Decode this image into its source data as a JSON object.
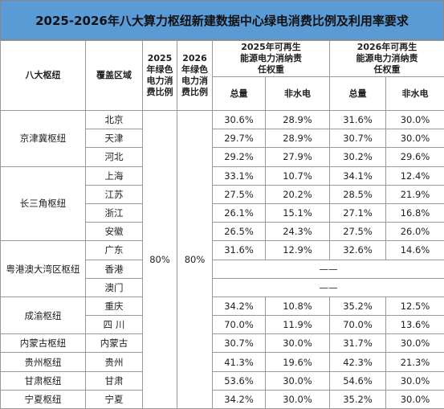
{
  "title": "2025-2026年八大算力枢纽新建数据中心绿电消费比例及利用率要求",
  "header": {
    "hub": "八大枢纽",
    "region": "覆盖区域",
    "green2025": "2025年绿色电力消费比例",
    "green2026": "2026年绿色电力消费比例",
    "weight2025": "2025年可再生能源电力消纳责任权重",
    "weight2026": "2026年可再生能源电力消纳责任权重",
    "total2025": "总量",
    "nonhydro2025": "非水电",
    "total2026": "总量",
    "nonhydro2026": "非水电"
  },
  "green2025_value": "80%",
  "green2026_value": "80%",
  "groups": [
    {
      "hub": "京津冀枢纽",
      "regions": [
        {
          "name": "北京",
          "cells": [
            "30.6%",
            "28.9%",
            "31.6%",
            "30.0%"
          ]
        },
        {
          "name": "天津",
          "cells": [
            "29.7%",
            "28.9%",
            "30.7%",
            "30.0%"
          ]
        },
        {
          "name": "河北",
          "cells": [
            "29.2%",
            "27.9%",
            "30.2%",
            "29.6%"
          ]
        }
      ]
    },
    {
      "hub": "长三角枢纽",
      "regions": [
        {
          "name": "上海",
          "cells": [
            "33.1%",
            "10.7%",
            "34.1%",
            "12.4%"
          ]
        },
        {
          "name": "江苏",
          "cells": [
            "27.5%",
            "20.2%",
            "28.5%",
            "21.9%"
          ]
        },
        {
          "name": "浙江",
          "cells": [
            "26.1%",
            "15.1%",
            "27.1%",
            "16.8%"
          ]
        },
        {
          "name": "安徽",
          "cells": [
            "26.5%",
            "24.3%",
            "27.5%",
            "26.0%"
          ]
        }
      ]
    },
    {
      "hub": "粤港澳大湾区枢纽",
      "regions": [
        {
          "name": "广东",
          "cells": [
            "31.6%",
            "12.9%",
            "32.6%",
            "14.6%"
          ]
        },
        {
          "name": "香港",
          "cells": [
            "——"
          ]
        },
        {
          "name": "澳门",
          "cells": [
            "——"
          ]
        }
      ]
    },
    {
      "hub": "成渝枢纽",
      "regions": [
        {
          "name": "重庆",
          "cells": [
            "34.2%",
            "10.8%",
            "35.2%",
            "12.5%"
          ]
        },
        {
          "name": "四 川",
          "cells": [
            "70.0%",
            "11.9%",
            "70.0%",
            "13.6%"
          ]
        }
      ]
    },
    {
      "hub": "内蒙古枢纽",
      "regions": [
        {
          "name": "内蒙古",
          "cells": [
            "30.7%",
            "30.0%",
            "31.7%",
            "30.0%"
          ]
        }
      ]
    },
    {
      "hub": "贵州枢纽",
      "regions": [
        {
          "name": "贵州",
          "cells": [
            "41.3%",
            "19.6%",
            "42.3%",
            "21.3%"
          ]
        }
      ]
    },
    {
      "hub": "甘肃枢纽",
      "regions": [
        {
          "name": "甘肃",
          "cells": [
            "53.6%",
            "30.0%",
            "54.6%",
            "30.0%"
          ]
        }
      ]
    },
    {
      "hub": "宁夏枢纽",
      "regions": [
        {
          "name": "宁夏",
          "cells": [
            "34.2%",
            "30.0%",
            "35.2%",
            "30.0%"
          ]
        }
      ]
    }
  ]
}
